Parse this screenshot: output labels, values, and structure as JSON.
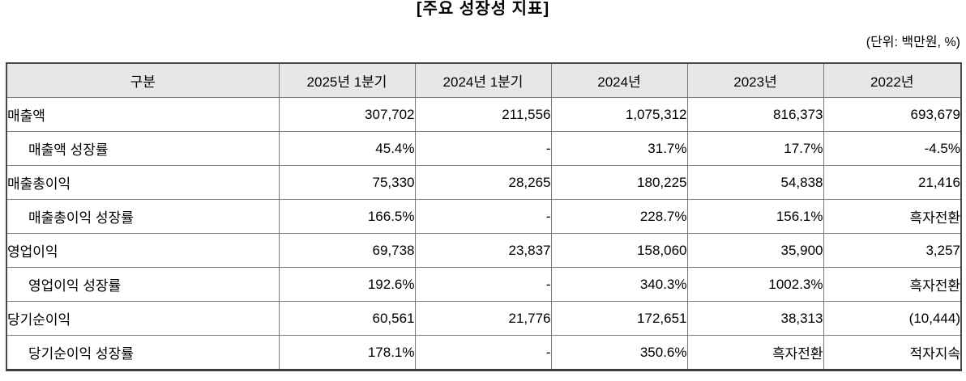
{
  "title": "[주요 성장성 지표]",
  "unit_note": "(단위: 백만원, %)",
  "table": {
    "columns": [
      "구분",
      "2025년 1분기",
      "2024년 1분기",
      "2024년",
      "2023년",
      "2022년"
    ],
    "rows": [
      {
        "label": "매출액",
        "indent": false,
        "values": [
          "307,702",
          "211,556",
          "1,075,312",
          "816,373",
          "693,679"
        ]
      },
      {
        "label": "매출액 성장률",
        "indent": true,
        "values": [
          "45.4%",
          "-",
          "31.7%",
          "17.7%",
          "-4.5%"
        ]
      },
      {
        "label": "매출총이익",
        "indent": false,
        "values": [
          "75,330",
          "28,265",
          "180,225",
          "54,838",
          "21,416"
        ]
      },
      {
        "label": "매출총이익 성장률",
        "indent": true,
        "values": [
          "166.5%",
          "-",
          "228.7%",
          "156.1%",
          "흑자전환"
        ]
      },
      {
        "label": "영업이익",
        "indent": false,
        "values": [
          "69,738",
          "23,837",
          "158,060",
          "35,900",
          "3,257"
        ]
      },
      {
        "label": "영업이익 성장률",
        "indent": true,
        "values": [
          "192.6%",
          "-",
          "340.3%",
          "1002.3%",
          "흑자전환"
        ]
      },
      {
        "label": "당기순이익",
        "indent": false,
        "values": [
          "60,561",
          "21,776",
          "172,651",
          "38,313",
          "(10,444)"
        ]
      },
      {
        "label": "당기순이익 성장률",
        "indent": true,
        "values": [
          "178.1%",
          "-",
          "350.6%",
          "흑자전환",
          "적자지속"
        ]
      }
    ]
  },
  "colors": {
    "header_bg": "#e7e7e7",
    "border_inner": "#7a7a7a",
    "border_outer": "#4a4a4a",
    "text": "#000000",
    "background": "#ffffff"
  }
}
